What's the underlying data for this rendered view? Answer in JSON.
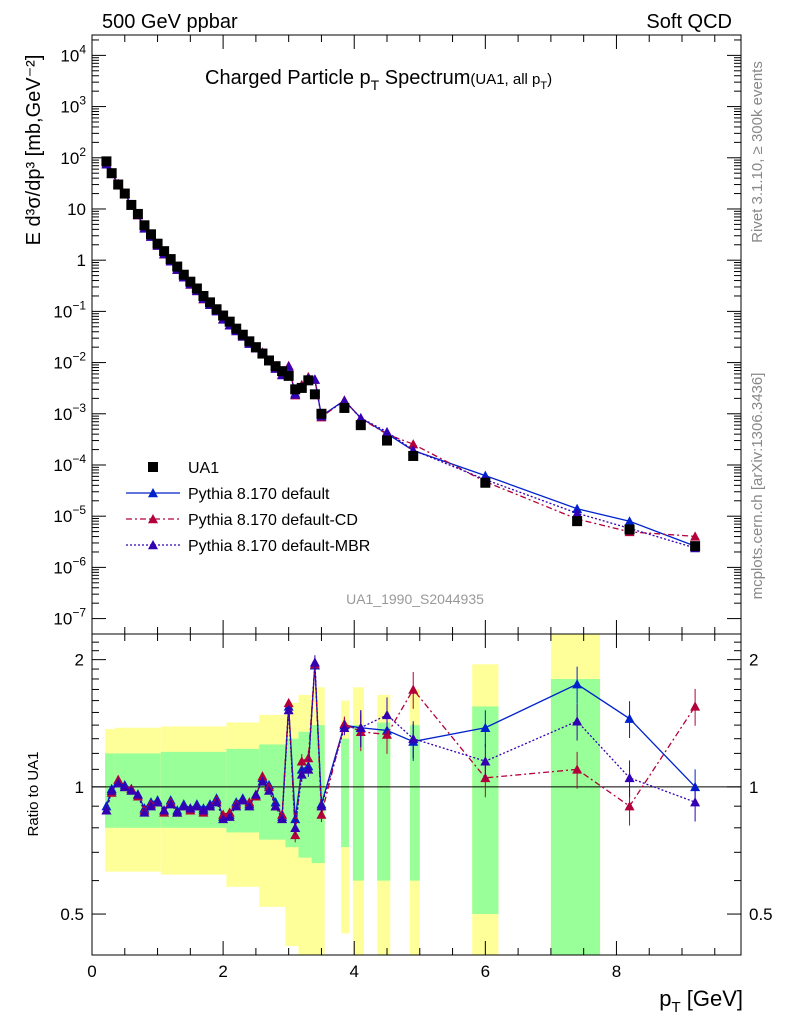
{
  "header": {
    "left": "500 GeV ppbar",
    "right": "Soft QCD"
  },
  "side": {
    "rivet": "Rivet 3.1.10, ≥ 300k events",
    "mcplots": "mcplots.cern.ch [arXiv:1306.3436]"
  },
  "main": {
    "title_main": "Charged Particle p",
    "title_sub": "T",
    "title_tail": " Spectrum",
    "title_small": "(UA1, all p",
    "title_small_sub": "T",
    "title_small_tail": ")",
    "ylabel": "E d³σ/dp³ [mb,GeV⁻²]",
    "watermark": "UA1_1990_S2044935"
  },
  "ratio": {
    "ylabel": "Ratio to UA1"
  },
  "xaxis": {
    "label": "p",
    "label_sub": "T",
    "label_tail": " [GeV]"
  },
  "legend": [
    {
      "label": "UA1",
      "key": "data"
    },
    {
      "label": "Pythia 8.170 default",
      "key": "s1"
    },
    {
      "label": "Pythia 8.170 default-CD",
      "key": "s2"
    },
    {
      "label": "Pythia 8.170 default-MBR",
      "key": "s3"
    }
  ],
  "colors": {
    "data": "#000000",
    "s1": "#0022cc",
    "s2": "#b3003b",
    "s3": "#3300b3",
    "band_inner": "#99ff99",
    "band_outer": "#ffff99"
  },
  "chart_data": {
    "type": "scatter",
    "x_label": "pT [GeV]",
    "y_label": "E d3sigma/dp3 [mb,GeV-2]",
    "xlim": [
      0,
      9.9
    ],
    "ylim": [
      5e-08,
      25000.0
    ],
    "yscale": "log",
    "ratio_ylim": [
      0.4,
      2.3
    ],
    "ratio_yscale": "log",
    "x": [
      0.22,
      0.3,
      0.4,
      0.5,
      0.6,
      0.7,
      0.8,
      0.9,
      1.0,
      1.1,
      1.2,
      1.3,
      1.4,
      1.5,
      1.6,
      1.7,
      1.8,
      1.9,
      2.0,
      2.1,
      2.2,
      2.3,
      2.4,
      2.5,
      2.6,
      2.7,
      2.8,
      2.9,
      3.0,
      3.1,
      3.2,
      3.3,
      3.4,
      3.5,
      3.85,
      4.1,
      4.5,
      4.9,
      6.0,
      7.4,
      8.2,
      9.2
    ],
    "data_values": [
      85,
      50,
      30,
      20,
      12,
      8,
      4.8,
      3.2,
      2.1,
      1.5,
      1.05,
      0.75,
      0.52,
      0.38,
      0.28,
      0.2,
      0.15,
      0.11,
      0.083,
      0.063,
      0.046,
      0.035,
      0.026,
      0.02,
      0.015,
      0.011,
      0.0085,
      0.0068,
      0.0055,
      0.003,
      0.0032,
      0.0045,
      0.0024,
      0.001,
      0.0013,
      0.0006,
      0.0003,
      0.00015,
      4.5e-05,
      8e-06,
      5.5e-06,
      2.6e-06
    ],
    "ratio_series": [
      {
        "key": "s1",
        "values": [
          0.9,
          0.99,
          1.03,
          1.01,
          0.99,
          0.96,
          0.89,
          0.92,
          0.93,
          0.88,
          0.93,
          0.88,
          0.91,
          0.89,
          0.91,
          0.89,
          0.91,
          0.94,
          0.85,
          0.86,
          0.92,
          0.94,
          0.91,
          0.95,
          1.05,
          1.01,
          0.92,
          0.85,
          1.55,
          0.84,
          1.1,
          1.12,
          1.94,
          0.91,
          1.4,
          1.38,
          1.36,
          1.28,
          1.38,
          1.75,
          1.45,
          1.0
        ]
      },
      {
        "key": "s2",
        "values": [
          0.88,
          0.97,
          1.04,
          1.0,
          0.99,
          0.95,
          0.88,
          0.91,
          0.92,
          0.87,
          0.92,
          0.87,
          0.9,
          0.88,
          0.9,
          0.87,
          0.9,
          0.93,
          0.86,
          0.87,
          0.91,
          0.93,
          0.92,
          0.95,
          1.06,
          1.0,
          0.9,
          0.86,
          1.58,
          0.77,
          1.15,
          1.17,
          1.95,
          0.86,
          1.41,
          1.35,
          1.33,
          1.7,
          1.05,
          1.1,
          0.9,
          1.55
        ]
      },
      {
        "key": "s3",
        "values": [
          0.88,
          0.98,
          1.02,
          1.0,
          0.98,
          0.96,
          0.87,
          0.9,
          0.92,
          0.88,
          0.91,
          0.87,
          0.9,
          0.89,
          0.9,
          0.88,
          0.9,
          0.92,
          0.84,
          0.85,
          0.9,
          0.93,
          0.9,
          0.96,
          1.03,
          0.98,
          0.9,
          0.84,
          1.52,
          0.8,
          1.07,
          1.1,
          1.97,
          0.9,
          1.38,
          1.38,
          1.48,
          1.3,
          1.15,
          1.43,
          1.05,
          0.92
        ]
      }
    ],
    "series": [
      {
        "name": "Pythia 8.170 default",
        "key": "s1"
      },
      {
        "name": "Pythia 8.170 default-CD",
        "key": "s2"
      },
      {
        "name": "Pythia 8.170 default-MBR",
        "key": "s3"
      }
    ],
    "bands": [
      {
        "x0": 0.2,
        "x1": 0.35,
        "in_lo": 0.8,
        "in_hi": 1.2,
        "out_lo": 0.63,
        "out_hi": 1.37
      },
      {
        "x0": 0.35,
        "x1": 1.05,
        "in_lo": 0.8,
        "in_hi": 1.2,
        "out_lo": 0.63,
        "out_hi": 1.38
      },
      {
        "x0": 1.05,
        "x1": 2.05,
        "in_lo": 0.8,
        "in_hi": 1.21,
        "out_lo": 0.62,
        "out_hi": 1.39
      },
      {
        "x0": 2.05,
        "x1": 2.55,
        "in_lo": 0.78,
        "in_hi": 1.23,
        "out_lo": 0.58,
        "out_hi": 1.42
      },
      {
        "x0": 2.55,
        "x1": 2.95,
        "in_lo": 0.75,
        "in_hi": 1.26,
        "out_lo": 0.52,
        "out_hi": 1.48
      },
      {
        "x0": 2.95,
        "x1": 3.15,
        "in_lo": 0.72,
        "in_hi": 1.3,
        "out_lo": 0.42,
        "out_hi": 1.58
      },
      {
        "x0": 3.15,
        "x1": 3.35,
        "in_lo": 0.68,
        "in_hi": 1.35,
        "out_lo": 0.35,
        "out_hi": 1.65
      },
      {
        "x0": 3.35,
        "x1": 3.55,
        "in_lo": 0.66,
        "in_hi": 1.4,
        "out_lo": 0.3,
        "out_hi": 1.72
      },
      {
        "x0": 3.8,
        "x1": 3.92,
        "in_lo": 0.72,
        "in_hi": 1.3,
        "out_lo": 0.45,
        "out_hi": 1.6
      },
      {
        "x0": 3.98,
        "x1": 4.15,
        "in_lo": 0.6,
        "in_hi": 1.4,
        "out_lo": 0.3,
        "out_hi": 1.72
      },
      {
        "x0": 4.35,
        "x1": 4.55,
        "in_lo": 0.6,
        "in_hi": 1.42,
        "out_lo": 0.3,
        "out_hi": 1.65
      },
      {
        "x0": 4.85,
        "x1": 5.0,
        "in_lo": 0.6,
        "in_hi": 1.4,
        "out_lo": 0.3,
        "out_hi": 1.7
      },
      {
        "x0": 5.8,
        "x1": 6.2,
        "in_lo": 0.5,
        "in_hi": 1.55,
        "out_lo": 0.3,
        "out_hi": 1.95
      },
      {
        "x0": 7.0,
        "x1": 7.75,
        "in_lo": 0.3,
        "in_hi": 1.8,
        "out_lo": 0.3,
        "out_hi": 2.5
      }
    ]
  }
}
